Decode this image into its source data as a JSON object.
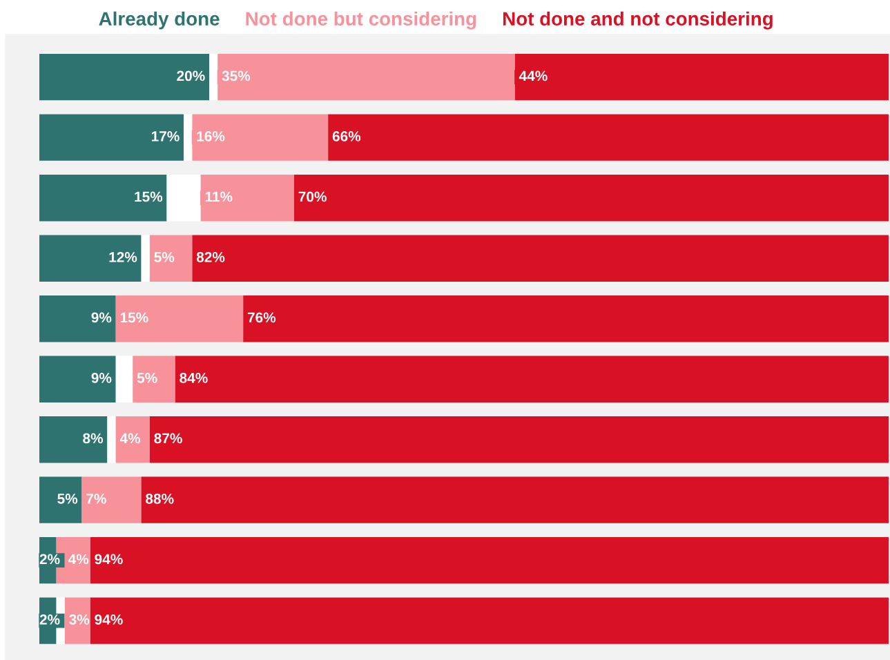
{
  "chart_data": {
    "type": "bar",
    "orientation": "horizontal",
    "stacked": true,
    "legend": "top",
    "categories": [
      null,
      null,
      null,
      null,
      null,
      null,
      null,
      null,
      null,
      null
    ],
    "series": [
      {
        "name": "Already done",
        "color": "#2e7370",
        "values": [
          20,
          17,
          15,
          12,
          9,
          9,
          8,
          5,
          2,
          2
        ],
        "value_labels": [
          "20%",
          "17%",
          "15%",
          "12%",
          "9%",
          "9%",
          "8%",
          "5%",
          "2%",
          "2%"
        ]
      },
      {
        "color": "#ffffff",
        "values": [
          1,
          1,
          4,
          1,
          0,
          2,
          1,
          0,
          0,
          1
        ],
        "value_labels": [
          null,
          null,
          null,
          null,
          null,
          null,
          null,
          null,
          null,
          null
        ]
      },
      {
        "name": "Not done but considering",
        "color": "#f7919a",
        "values": [
          35,
          16,
          11,
          5,
          15,
          5,
          4,
          7,
          4,
          3
        ],
        "value_labels": [
          "35%",
          "16%",
          "11%",
          "5%",
          "15%",
          "5%",
          "4%",
          "7%",
          "4%",
          "3%"
        ]
      },
      {
        "name": "Not done and not considering",
        "color": "#d81124",
        "values": [
          44,
          66,
          70,
          82,
          76,
          84,
          87,
          88,
          94,
          94
        ],
        "value_labels": [
          "44%",
          "66%",
          "70%",
          "82%",
          "76%",
          "84%",
          "87%",
          "88%",
          "94%",
          "94%"
        ]
      }
    ]
  }
}
